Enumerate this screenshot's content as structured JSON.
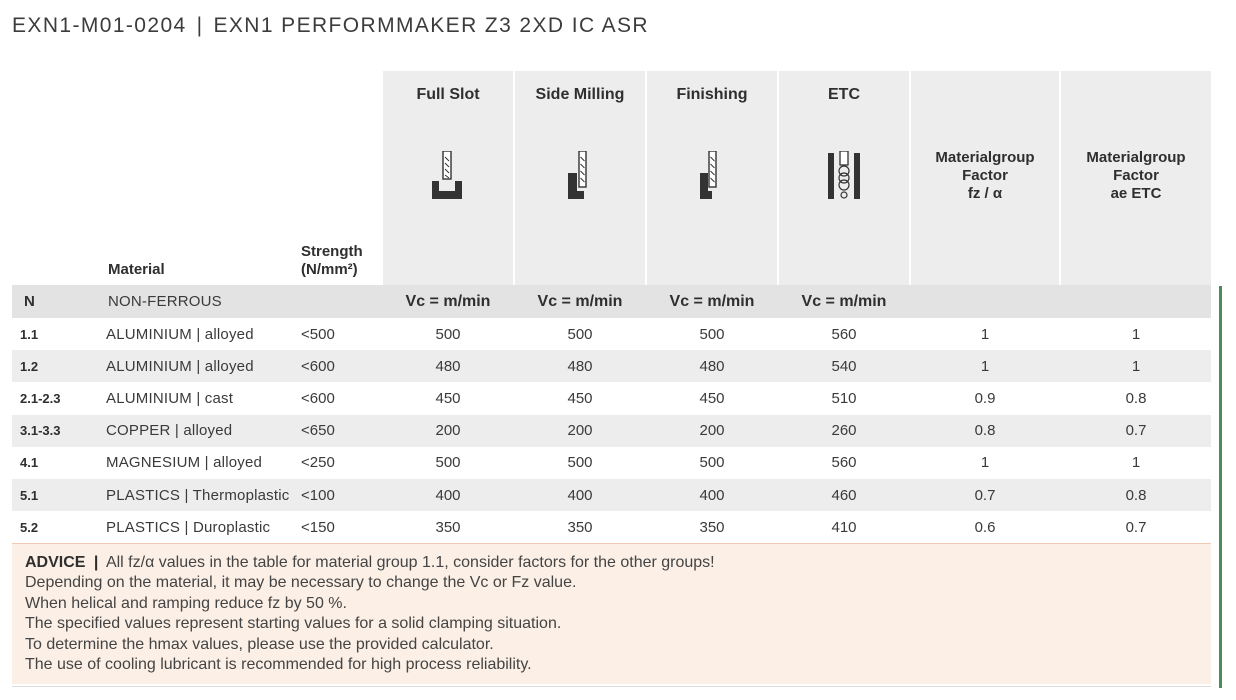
{
  "title": {
    "code": "EXN1-M01-0204",
    "separator": "|",
    "name": "EXN1 PERFORMMAKER Z3 2XD IC ASR"
  },
  "headers": {
    "material": "Material",
    "strength_line1": "Strength",
    "strength_line2": "(N/mm²)",
    "full_slot": "Full Slot",
    "side_milling": "Side Milling",
    "finishing": "Finishing",
    "etc": "ETC",
    "factor1": [
      "Materialgroup",
      "Factor",
      "fz / α"
    ],
    "factor2": [
      "Materialgroup",
      "Factor",
      "ae ETC"
    ]
  },
  "icons": {
    "full_slot": "full-slot-milling-icon",
    "side_milling": "side-milling-icon",
    "finishing": "finishing-icon",
    "etc": "etc-trochoidal-icon"
  },
  "group": {
    "code": "N",
    "name": "NON-FERROUS",
    "vc": [
      "Vc = m/min",
      "Vc = m/min",
      "Vc = m/min",
      "Vc = m/min"
    ]
  },
  "rows": [
    {
      "code": "1.1",
      "material": "ALUMINIUM |  alloyed",
      "strength": "<500",
      "full_slot": "500",
      "side_milling": "500",
      "finishing": "500",
      "etc": "560",
      "factor_fz": "1",
      "factor_ae": "1"
    },
    {
      "code": "1.2",
      "material": "ALUMINIUM | alloyed",
      "strength": "<600",
      "full_slot": "480",
      "side_milling": "480",
      "finishing": "480",
      "etc": "540",
      "factor_fz": "1",
      "factor_ae": "1"
    },
    {
      "code": "2.1-2.3",
      "material": "ALUMINIUM | cast",
      "strength": "<600",
      "full_slot": "450",
      "side_milling": "450",
      "finishing": "450",
      "etc": "510",
      "factor_fz": "0.9",
      "factor_ae": "0.8"
    },
    {
      "code": "3.1-3.3",
      "material": "COPPER | alloyed",
      "strength": "<650",
      "full_slot": "200",
      "side_milling": "200",
      "finishing": "200",
      "etc": "260",
      "factor_fz": "0.8",
      "factor_ae": "0.7"
    },
    {
      "code": "4.1",
      "material": "MAGNESIUM | alloyed",
      "strength": "<250",
      "full_slot": "500",
      "side_milling": "500",
      "finishing": "500",
      "etc": "560",
      "factor_fz": "1",
      "factor_ae": "1"
    },
    {
      "code": "5.1",
      "material": "PLASTICS | Thermoplastic",
      "strength": "<100",
      "full_slot": "400",
      "side_milling": "400",
      "finishing": "400",
      "etc": "460",
      "factor_fz": "0.7",
      "factor_ae": "0.8"
    },
    {
      "code": "5.2",
      "material": "PLASTICS | Duroplastic",
      "strength": "<150",
      "full_slot": "350",
      "side_milling": "350",
      "finishing": "350",
      "etc": "410",
      "factor_fz": "0.6",
      "factor_ae": "0.7"
    }
  ],
  "advice": {
    "label": "ADVICE",
    "separator": "|",
    "first": "All fz/α values in the table for material group 1.1, consider factors for the other groups!",
    "lines": [
      "Depending on the material, it may be necessary to change the Vc or Fz value.",
      "When helical and ramping reduce fz by 50 %.",
      "The specified values represent starting values for a solid clamping situation.",
      "To determine the hmax values, please use the provided calculator.",
      "The use of cooling lubricant is recommended for high process reliability."
    ]
  },
  "colors": {
    "accent_green": "#4f8a5c",
    "advice_bg": "#fbefe6",
    "header_bg": "#ededed"
  }
}
